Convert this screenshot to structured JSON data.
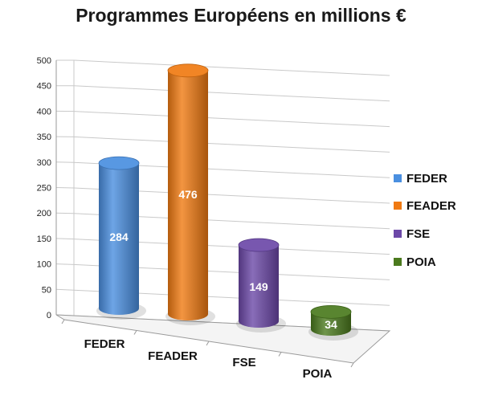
{
  "chart_data": {
    "type": "bar",
    "title": "Programmes Européens en millions €",
    "categories": [
      "FEDER",
      "FEADER",
      "FSE",
      "POIA"
    ],
    "values": [
      284,
      476,
      149,
      34
    ],
    "ylim": [
      0,
      500
    ],
    "yticks": [
      0,
      50,
      100,
      150,
      200,
      250,
      300,
      350,
      400,
      450,
      500
    ],
    "colors": [
      "#4a8fe0",
      "#f07a12",
      "#6c48a8",
      "#4b7a1e"
    ],
    "legend": [
      "FEDER",
      "FEADER",
      "FSE",
      "POIA"
    ],
    "legend_position": "right",
    "grid": true,
    "style": "3d-cylinder"
  }
}
